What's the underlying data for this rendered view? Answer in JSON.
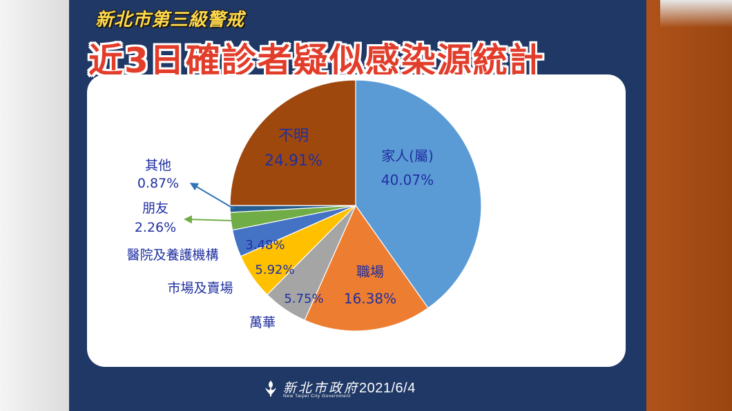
{
  "header": {
    "alert_title": "新北市第三級警戒",
    "main_title": "近3日確診者疑似感染源統計"
  },
  "chart_data": {
    "type": "pie",
    "start": "12 o'clock, clockwise",
    "slices": [
      {
        "name": "家人(屬)",
        "value": 40.07,
        "label": "40.07%",
        "color": "#5b9bd5"
      },
      {
        "name": "職場",
        "value": 16.38,
        "label": "16.38%",
        "color": "#ed7d31"
      },
      {
        "name": "萬華",
        "value": 5.75,
        "label": "5.75%",
        "color": "#a5a5a5"
      },
      {
        "name": "市場及賣場",
        "value": 5.92,
        "label": "5.92%",
        "color": "#ffc000"
      },
      {
        "name": "醫院及養護機構",
        "value": 3.48,
        "label": "3.48%",
        "color": "#4472c4"
      },
      {
        "name": "朋友",
        "value": 2.26,
        "label": "2.26%",
        "color": "#70ad47"
      },
      {
        "name": "其他",
        "value": 0.87,
        "label": "0.87%",
        "color": "#255e91"
      },
      {
        "name": "不明",
        "value": 24.91,
        "label": "24.91%",
        "color": "#9e480e"
      }
    ],
    "label_color": "#1f2fa0"
  },
  "footer": {
    "org_name": "新北市政府",
    "org_name_en": "New Taipei City Government",
    "date": "2021/6/4"
  },
  "colors": {
    "slide_background": "#1f3866",
    "title_red": "#e23c2a",
    "alert_yellow": "#ffd84a",
    "right_strip": "#a84c14"
  }
}
